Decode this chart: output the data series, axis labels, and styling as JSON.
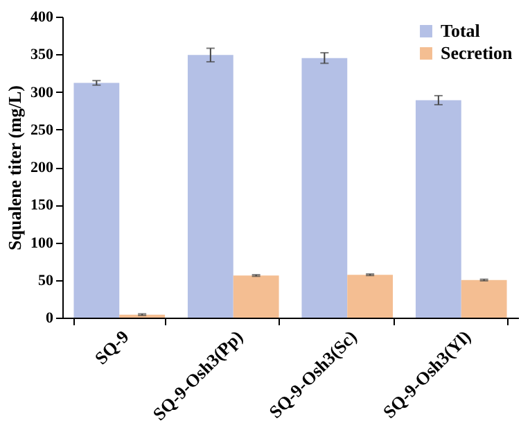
{
  "chart_data": {
    "type": "bar",
    "ylabel": "Squalene titer (mg/L)",
    "categories": [
      "SQ-9",
      "SQ-9-Osh3(Pp)",
      "SQ-9-Osh3(Sc)",
      "SQ-9-Osh3(Yl)"
    ],
    "series": [
      {
        "name": "Total",
        "color": "#b4c0e6",
        "values": [
          312,
          349,
          345,
          289
        ],
        "errors": [
          3,
          9,
          7,
          6
        ]
      },
      {
        "name": "Secretion",
        "color": "#f4be92",
        "values": [
          4,
          56,
          57,
          50
        ],
        "errors": [
          1,
          1,
          1,
          1
        ]
      }
    ],
    "ylim": [
      0,
      400
    ],
    "yticks": [
      0,
      50,
      100,
      150,
      200,
      250,
      300,
      350,
      400
    ],
    "grid": false,
    "legend": "top right"
  }
}
